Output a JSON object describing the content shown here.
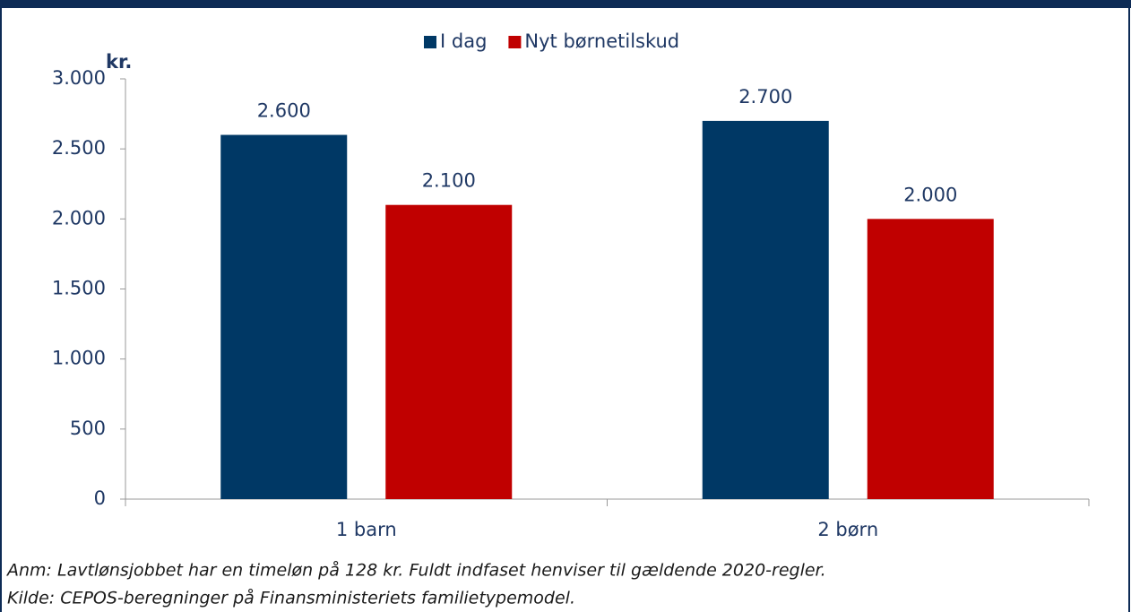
{
  "chart_data": {
    "type": "bar",
    "y_unit_label": "kr.",
    "categories": [
      "1 barn",
      "2 børn"
    ],
    "series": [
      {
        "name": "I dag",
        "color": "#003865",
        "values": [
          2600,
          2700
        ],
        "value_labels": [
          "2.600",
          "2.700"
        ]
      },
      {
        "name": "Nyt børnetilskud",
        "color": "#c00000",
        "values": [
          2100,
          2000
        ],
        "value_labels": [
          "2.100",
          "2.000"
        ]
      }
    ],
    "ylim": [
      0,
      3000
    ],
    "yticks": [
      {
        "value": 0,
        "label": "0"
      },
      {
        "value": 500,
        "label": "500"
      },
      {
        "value": 1000,
        "label": "1.000"
      },
      {
        "value": 1500,
        "label": "1.500"
      },
      {
        "value": 2000,
        "label": "2.000"
      },
      {
        "value": 2500,
        "label": "2.500"
      },
      {
        "value": 3000,
        "label": "3.000"
      }
    ],
    "legend": "top",
    "notes": [
      "Anm: Lavtlønsjobbet har en timeløn på 128 kr. Fuldt indfaset henviser til gældende 2020-regler.",
      "Kilde: CEPOS-beregninger på Finansministeriets familietypemodel."
    ]
  }
}
